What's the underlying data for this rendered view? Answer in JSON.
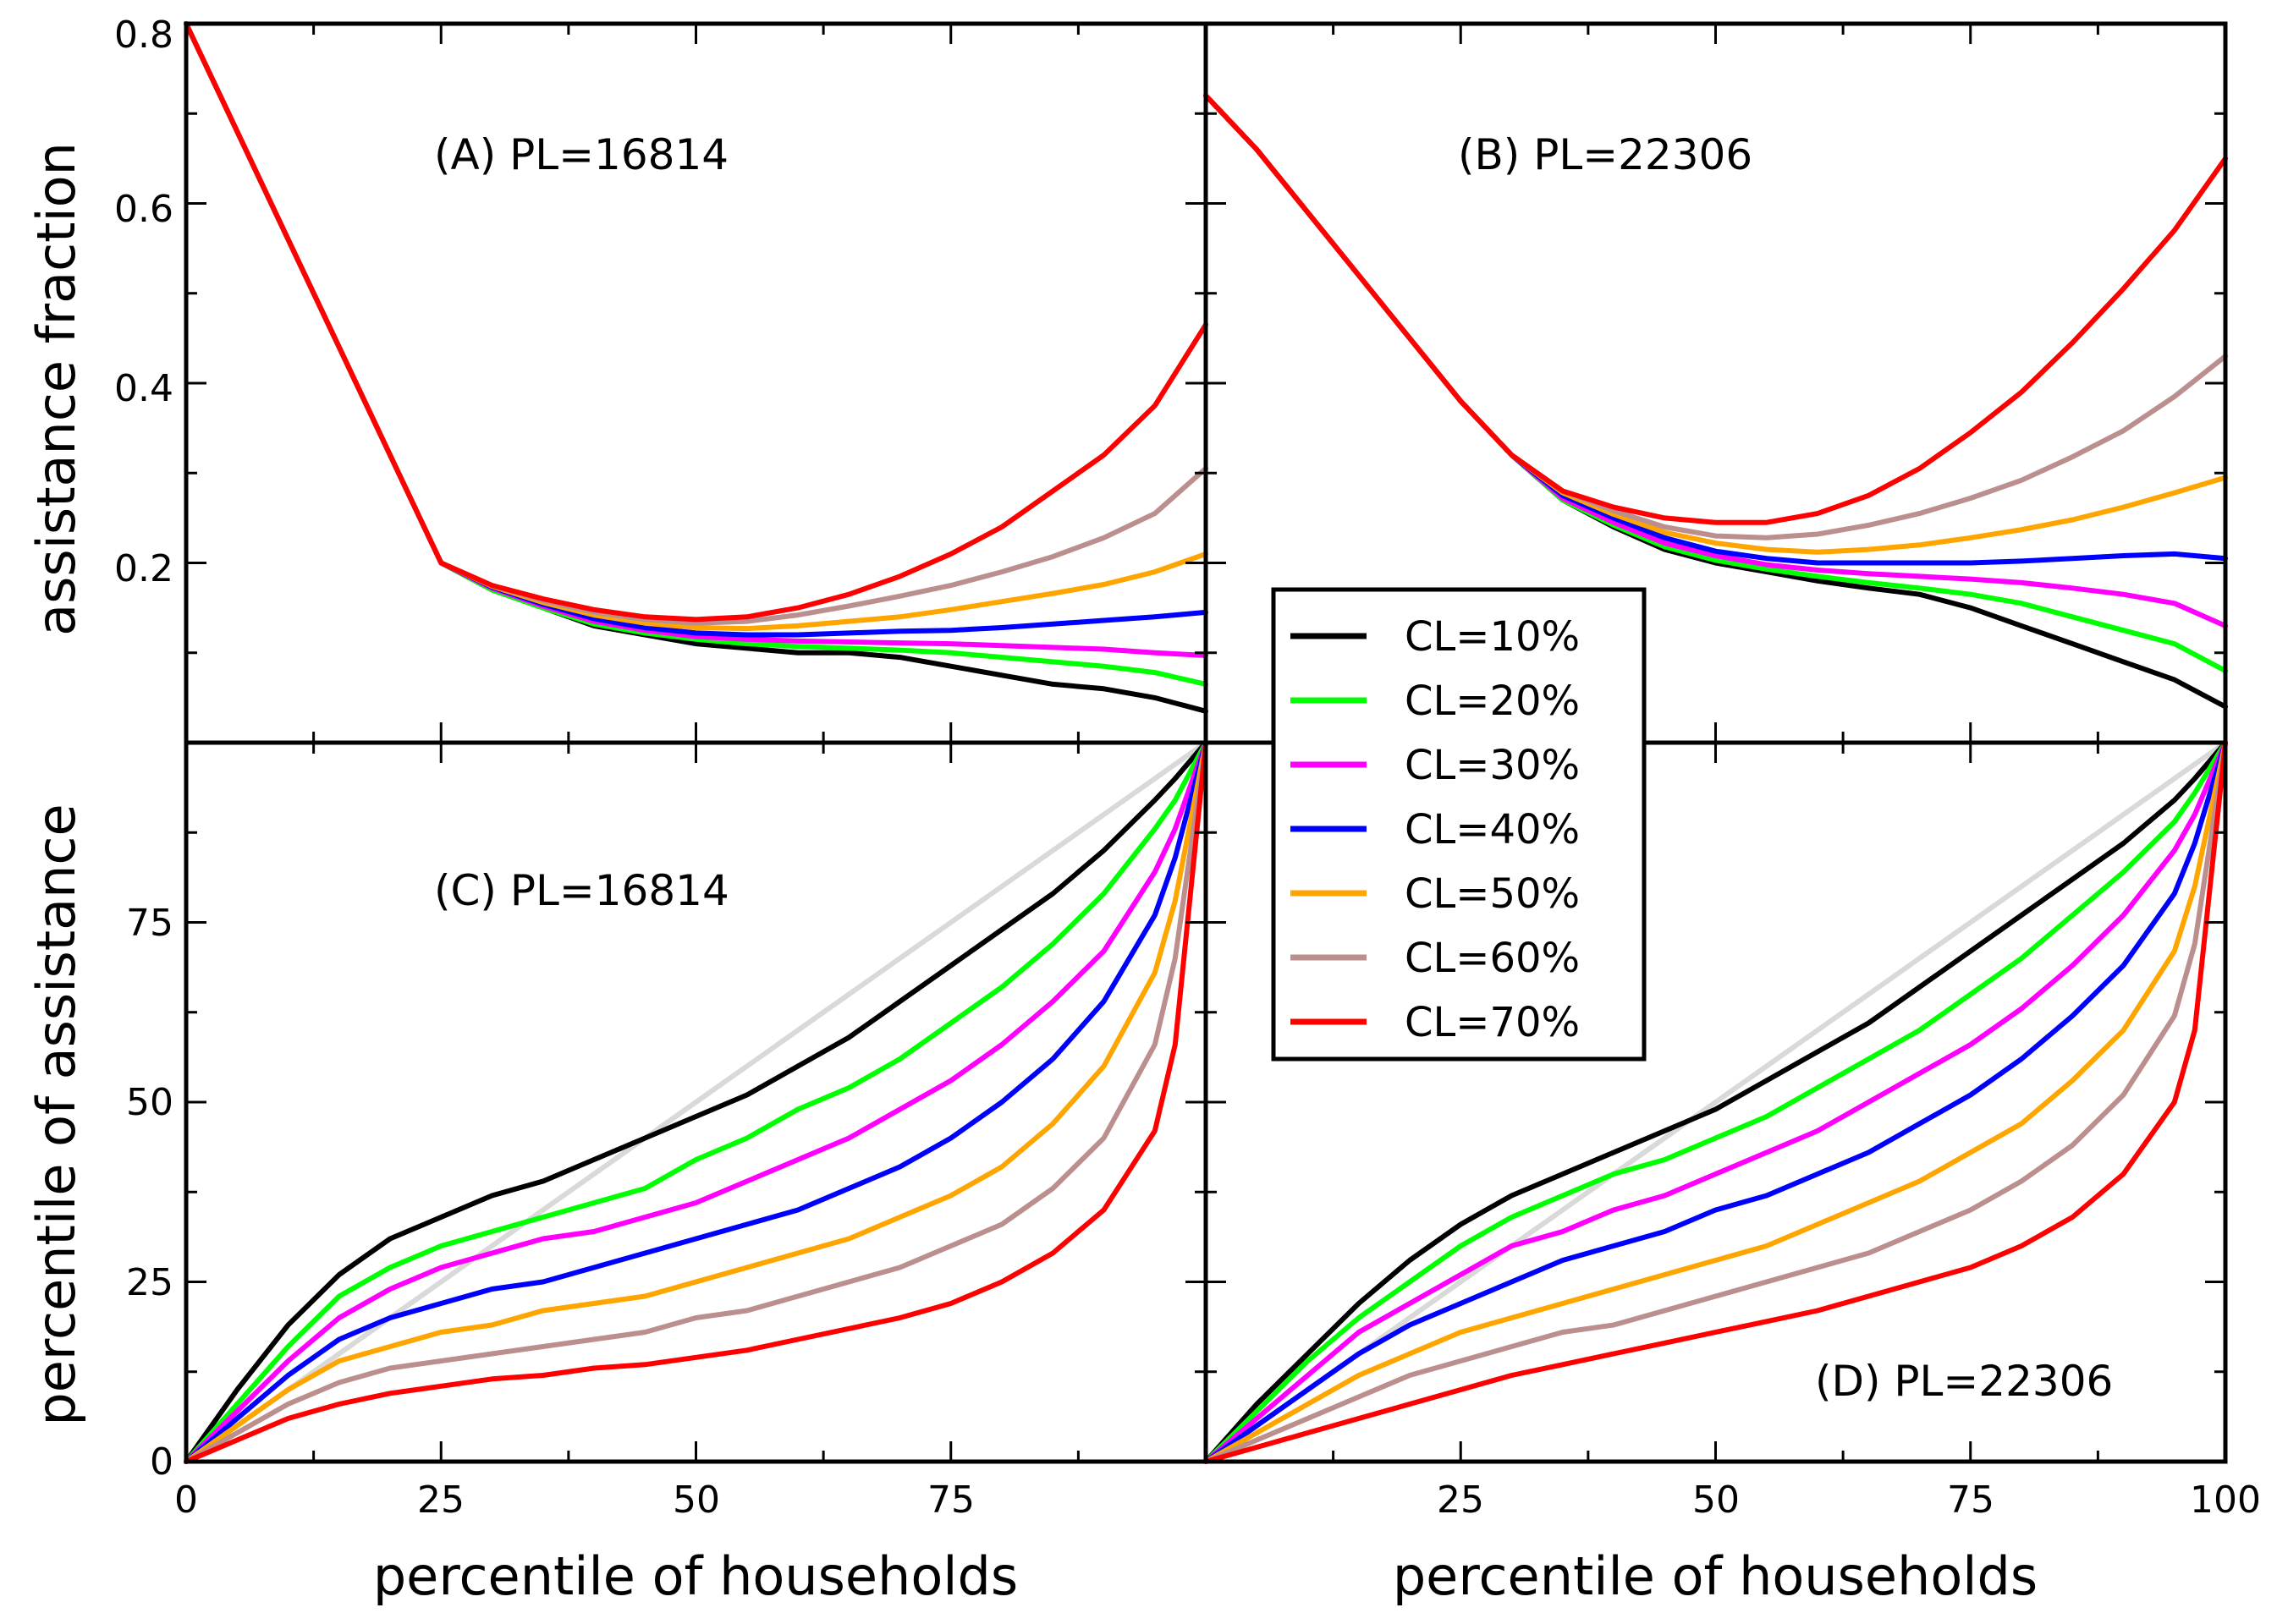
{
  "chart_data": {
    "type": "line",
    "legend": {
      "position": "center",
      "entries": [
        {
          "label": "CL=10%",
          "color": "#000000"
        },
        {
          "label": "CL=20%",
          "color": "#00ff00"
        },
        {
          "label": "CL=30%",
          "color": "#ff00ff"
        },
        {
          "label": "CL=40%",
          "color": "#0000ff"
        },
        {
          "label": "CL=50%",
          "color": "#ffa500"
        },
        {
          "label": "CL=60%",
          "color": "#bc8f8f"
        },
        {
          "label": "CL=70%",
          "color": "#ff0000"
        }
      ]
    },
    "x_axis": {
      "label": "percentile of households",
      "range": [
        0,
        100
      ],
      "left_ticks": [
        "0",
        "25",
        "50",
        "75"
      ],
      "right_ticks": [
        "25",
        "50",
        "75",
        "100"
      ]
    },
    "top_axis": {
      "label": "assistance fraction",
      "range": [
        0,
        0.8
      ],
      "ticks": [
        "0.2",
        "0.4",
        "0.6",
        "0.8"
      ]
    },
    "bottom_axis": {
      "label": "percentile of assistance",
      "range": [
        0,
        100
      ],
      "ticks": [
        "0",
        "25",
        "50",
        "75"
      ]
    },
    "panels": [
      {
        "id": "A",
        "label": "(A) PL=16814",
        "position": "top-left",
        "x": [
          0,
          5,
          10,
          15,
          20,
          25,
          30,
          35,
          40,
          45,
          50,
          55,
          60,
          65,
          70,
          75,
          80,
          85,
          90,
          95,
          100
        ],
        "series": [
          {
            "name": "CL=10%",
            "values": [
              0.8,
              0.68,
              0.56,
              0.44,
              0.32,
              0.2,
              0.17,
              0.15,
              0.13,
              0.12,
              0.11,
              0.105,
              0.1,
              0.1,
              0.095,
              0.085,
              0.075,
              0.065,
              0.06,
              0.05,
              0.035
            ]
          },
          {
            "name": "CL=20%",
            "values": [
              0.8,
              0.68,
              0.56,
              0.44,
              0.32,
              0.2,
              0.17,
              0.15,
              0.132,
              0.122,
              0.115,
              0.11,
              0.107,
              0.105,
              0.103,
              0.1,
              0.095,
              0.09,
              0.085,
              0.078,
              0.065
            ]
          },
          {
            "name": "CL=30%",
            "values": [
              0.8,
              0.68,
              0.56,
              0.44,
              0.32,
              0.2,
              0.172,
              0.152,
              0.135,
              0.125,
              0.118,
              0.115,
              0.113,
              0.112,
              0.111,
              0.11,
              0.108,
              0.106,
              0.104,
              0.1,
              0.097
            ]
          },
          {
            "name": "CL=40%",
            "values": [
              0.8,
              0.68,
              0.56,
              0.44,
              0.32,
              0.2,
              0.173,
              0.154,
              0.138,
              0.128,
              0.122,
              0.12,
              0.12,
              0.122,
              0.124,
              0.125,
              0.128,
              0.132,
              0.136,
              0.14,
              0.145
            ]
          },
          {
            "name": "CL=50%",
            "values": [
              0.8,
              0.68,
              0.56,
              0.44,
              0.32,
              0.2,
              0.174,
              0.156,
              0.142,
              0.133,
              0.128,
              0.127,
              0.13,
              0.135,
              0.14,
              0.148,
              0.157,
              0.166,
              0.176,
              0.19,
              0.21
            ]
          },
          {
            "name": "CL=60%",
            "values": [
              0.8,
              0.68,
              0.56,
              0.44,
              0.32,
              0.2,
              0.175,
              0.158,
              0.145,
              0.137,
              0.133,
              0.135,
              0.142,
              0.152,
              0.163,
              0.175,
              0.19,
              0.207,
              0.228,
              0.255,
              0.305
            ]
          },
          {
            "name": "CL=70%",
            "values": [
              0.8,
              0.68,
              0.56,
              0.44,
              0.32,
              0.2,
              0.175,
              0.16,
              0.148,
              0.14,
              0.137,
              0.14,
              0.15,
              0.165,
              0.185,
              0.21,
              0.24,
              0.28,
              0.32,
              0.375,
              0.465
            ]
          }
        ]
      },
      {
        "id": "B",
        "label": "(B) PL=22306",
        "position": "top-right",
        "x": [
          0,
          5,
          10,
          15,
          20,
          25,
          30,
          35,
          40,
          45,
          50,
          55,
          60,
          65,
          70,
          75,
          80,
          85,
          90,
          95,
          100
        ],
        "series": [
          {
            "name": "CL=10%",
            "values": [
              0.72,
              0.66,
              0.59,
              0.52,
              0.45,
              0.38,
              0.32,
              0.27,
              0.24,
              0.215,
              0.2,
              0.19,
              0.18,
              0.172,
              0.165,
              0.15,
              0.13,
              0.11,
              0.09,
              0.07,
              0.04
            ]
          },
          {
            "name": "CL=20%",
            "values": [
              0.72,
              0.66,
              0.59,
              0.52,
              0.45,
              0.38,
              0.32,
              0.27,
              0.242,
              0.218,
              0.203,
              0.193,
              0.185,
              0.178,
              0.172,
              0.165,
              0.155,
              0.14,
              0.125,
              0.11,
              0.08
            ]
          },
          {
            "name": "CL=30%",
            "values": [
              0.72,
              0.66,
              0.59,
              0.52,
              0.45,
              0.38,
              0.32,
              0.272,
              0.245,
              0.222,
              0.208,
              0.198,
              0.192,
              0.188,
              0.185,
              0.182,
              0.178,
              0.172,
              0.165,
              0.155,
              0.13
            ]
          },
          {
            "name": "CL=40%",
            "values": [
              0.72,
              0.66,
              0.59,
              0.52,
              0.45,
              0.38,
              0.32,
              0.275,
              0.25,
              0.228,
              0.213,
              0.205,
              0.2,
              0.2,
              0.2,
              0.2,
              0.202,
              0.205,
              0.208,
              0.21,
              0.205
            ]
          },
          {
            "name": "CL=50%",
            "values": [
              0.72,
              0.66,
              0.59,
              0.52,
              0.45,
              0.38,
              0.32,
              0.278,
              0.254,
              0.234,
              0.222,
              0.215,
              0.212,
              0.215,
              0.22,
              0.228,
              0.237,
              0.248,
              0.262,
              0.278,
              0.295
            ]
          },
          {
            "name": "CL=60%",
            "values": [
              0.72,
              0.66,
              0.59,
              0.52,
              0.45,
              0.38,
              0.32,
              0.28,
              0.258,
              0.24,
              0.23,
              0.228,
              0.232,
              0.242,
              0.255,
              0.272,
              0.292,
              0.318,
              0.347,
              0.385,
              0.43
            ]
          },
          {
            "name": "CL=70%",
            "values": [
              0.72,
              0.66,
              0.59,
              0.52,
              0.45,
              0.38,
              0.32,
              0.28,
              0.262,
              0.25,
              0.245,
              0.245,
              0.255,
              0.275,
              0.305,
              0.345,
              0.39,
              0.445,
              0.505,
              0.57,
              0.65
            ]
          }
        ]
      },
      {
        "id": "C",
        "label": "(C) PL=16814",
        "position": "bottom-left",
        "x": [
          0,
          5,
          10,
          15,
          20,
          25,
          30,
          35,
          40,
          45,
          50,
          55,
          60,
          65,
          70,
          75,
          80,
          85,
          90,
          95,
          97,
          100
        ],
        "series": [
          {
            "name": "diagonal",
            "values": [
              0,
              5,
              10,
              15,
              20,
              25,
              30,
              35,
              40,
              45,
              50,
              55,
              60,
              65,
              70,
              75,
              80,
              85,
              90,
              95,
              97,
              100
            ]
          },
          {
            "name": "CL=10%",
            "values": [
              0,
              10,
              19,
              26,
              31,
              34,
              37,
              39,
              42,
              45,
              48,
              51,
              55,
              59,
              64,
              69,
              74,
              79,
              85,
              92,
              95,
              100
            ]
          },
          {
            "name": "CL=20%",
            "values": [
              0,
              8,
              16,
              23,
              27,
              30,
              32,
              34,
              36,
              38,
              42,
              45,
              49,
              52,
              56,
              61,
              66,
              72,
              79,
              88,
              92,
              100
            ]
          },
          {
            "name": "CL=30%",
            "values": [
              0,
              7,
              14,
              20,
              24,
              27,
              29,
              31,
              32,
              34,
              36,
              39,
              42,
              45,
              49,
              53,
              58,
              64,
              71,
              82,
              88,
              100
            ]
          },
          {
            "name": "CL=40%",
            "values": [
              0,
              6,
              12,
              17,
              20,
              22,
              24,
              25,
              27,
              29,
              31,
              33,
              35,
              38,
              41,
              45,
              50,
              56,
              64,
              76,
              84,
              100
            ]
          },
          {
            "name": "CL=50%",
            "values": [
              0,
              5,
              10,
              14,
              16,
              18,
              19,
              21,
              22,
              23,
              25,
              27,
              29,
              31,
              34,
              37,
              41,
              47,
              55,
              68,
              78,
              100
            ]
          },
          {
            "name": "CL=60%",
            "values": [
              0,
              4,
              8,
              11,
              13,
              14,
              15,
              16,
              17,
              18,
              20,
              21,
              23,
              25,
              27,
              30,
              33,
              38,
              45,
              58,
              70,
              100
            ]
          },
          {
            "name": "CL=70%",
            "values": [
              0,
              3,
              6,
              8,
              9.5,
              10.5,
              11.5,
              12,
              13,
              13.5,
              14.5,
              15.5,
              17,
              18.5,
              20,
              22,
              25,
              29,
              35,
              46,
              58,
              100
            ]
          }
        ]
      },
      {
        "id": "D",
        "label": "(D) PL=22306",
        "position": "bottom-right",
        "x": [
          0,
          5,
          10,
          15,
          20,
          25,
          30,
          35,
          40,
          45,
          50,
          55,
          60,
          65,
          70,
          75,
          80,
          85,
          90,
          95,
          97,
          100
        ],
        "series": [
          {
            "name": "diagonal",
            "values": [
              0,
              5,
              10,
              15,
              20,
              25,
              30,
              35,
              40,
              45,
              50,
              55,
              60,
              65,
              70,
              75,
              80,
              85,
              90,
              95,
              97,
              100
            ]
          },
          {
            "name": "CL=10%",
            "values": [
              0,
              8,
              15,
              22,
              28,
              33,
              37,
              40,
              43,
              46,
              49,
              53,
              57,
              61,
              66,
              71,
              76,
              81,
              86,
              92,
              95,
              100
            ]
          },
          {
            "name": "CL=20%",
            "values": [
              0,
              7,
              14,
              20,
              25,
              30,
              34,
              37,
              40,
              42,
              45,
              48,
              52,
              56,
              60,
              65,
              70,
              76,
              82,
              89,
              93,
              100
            ]
          },
          {
            "name": "CL=30%",
            "values": [
              0,
              6,
              12,
              18,
              22,
              26,
              30,
              32,
              35,
              37,
              40,
              43,
              46,
              50,
              54,
              58,
              63,
              69,
              76,
              85,
              90,
              100
            ]
          },
          {
            "name": "CL=40%",
            "values": [
              0,
              5,
              10,
              15,
              19,
              22,
              25,
              28,
              30,
              32,
              35,
              37,
              40,
              43,
              47,
              51,
              56,
              62,
              69,
              79,
              86,
              100
            ]
          },
          {
            "name": "CL=50%",
            "values": [
              0,
              4,
              8,
              12,
              15,
              18,
              20,
              22,
              24,
              26,
              28,
              30,
              33,
              36,
              39,
              43,
              47,
              53,
              60,
              71,
              80,
              100
            ]
          },
          {
            "name": "CL=60%",
            "values": [
              0,
              3,
              6,
              9,
              12,
              14,
              16,
              18,
              19,
              21,
              23,
              25,
              27,
              29,
              32,
              35,
              39,
              44,
              51,
              62,
              72,
              100
            ]
          },
          {
            "name": "CL=70%",
            "values": [
              0,
              2,
              4,
              6,
              8,
              10,
              12,
              13.5,
              15,
              16.5,
              18,
              19.5,
              21,
              23,
              25,
              27,
              30,
              34,
              40,
              50,
              60,
              100
            ]
          }
        ]
      }
    ]
  }
}
